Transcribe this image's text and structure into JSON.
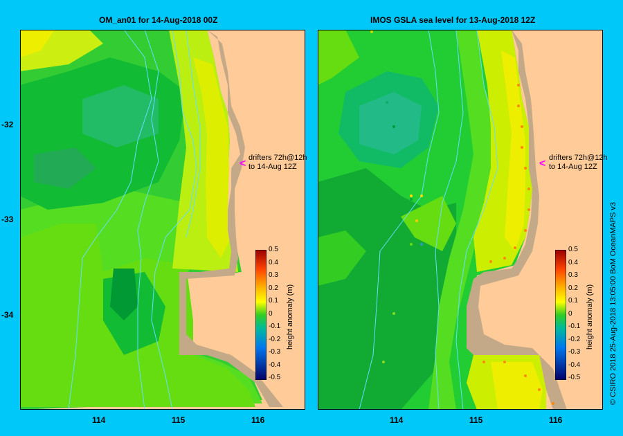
{
  "panels": [
    {
      "title": "OM_an01  for 14-Aug-2018 00Z",
      "drifters": [
        "drifters 72h@12h",
        "to 14-Aug 12Z"
      ]
    },
    {
      "title": "IMOS GSLA sea level  for 13-Aug-2018 12Z",
      "drifters": [
        "drifters 72h@12h",
        "to 14-Aug 12Z"
      ]
    }
  ],
  "axes": {
    "lat_ticks": [
      "-32",
      "-33",
      "-34"
    ],
    "lon_ticks": [
      "114",
      "115",
      "116"
    ]
  },
  "colorbar": {
    "title": "height anomaly (m)",
    "ticks": [
      "0.5",
      "0.4",
      "0.3",
      "0.2",
      "0.1",
      "0",
      "-0.1",
      "-0.2",
      "-0.3",
      "-0.4",
      "-0.5"
    ]
  },
  "credit": "© CSIRO 2018   25-Aug-2018 13:05:00 BoM OceanMAPS v3",
  "colors": {
    "background": "#00c8f8",
    "land": "#ffcc99",
    "coast_shelf": "#c4a988",
    "drifter_arrow": "#ff00ff",
    "bathymetry": "#66ddff"
  }
}
